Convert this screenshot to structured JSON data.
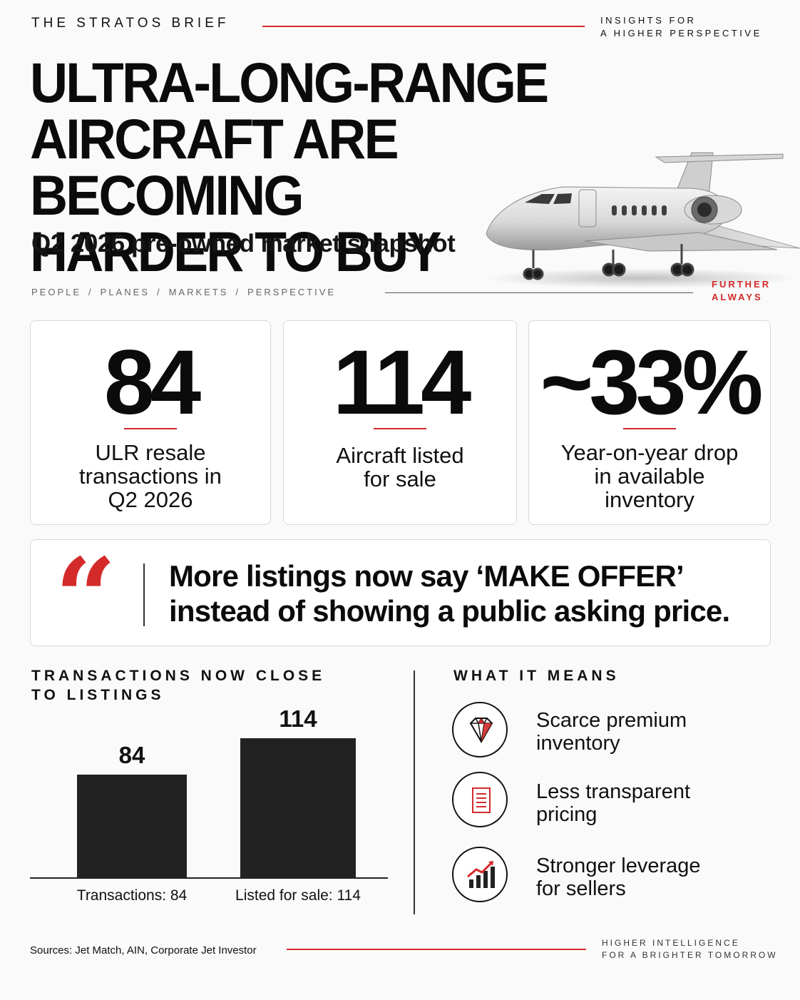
{
  "header": {
    "brand": "THE STRATOS BRIEF",
    "tagline_line1": "INSIGHTS FOR",
    "tagline_line2": "A HIGHER PERSPECTIVE"
  },
  "headline": {
    "line1": "ULTRA-LONG-RANGE",
    "line2": "AIRCRAFT ARE BECOMING",
    "line3": "HARDER TO BUY",
    "subtitle": "Q2 2026 pre-owned market snapshot"
  },
  "nav": {
    "items": [
      "PEOPLE",
      "PLANES",
      "MARKETS",
      "PERSPECTIVE"
    ],
    "separator": "/",
    "slogan_line1": "FURTHER",
    "slogan_line2": "ALWAYS"
  },
  "stats": [
    {
      "value": "84",
      "label_line1": "ULR resale",
      "label_line2": "transactions in",
      "label_line3": "Q2 2026"
    },
    {
      "value": "114",
      "label_line1": "Aircraft listed",
      "label_line2": "for sale"
    },
    {
      "value": "~33%",
      "label_line1": "Year-on-year drop",
      "label_line2": "in available",
      "label_line3": "inventory"
    }
  ],
  "quote": {
    "mark": "“",
    "line1": "More listings now say ‘MAKE OFFER’",
    "line2": "instead of showing a public asking price."
  },
  "chart_section": {
    "title_line1": "TRANSACTIONS NOW CLOSE",
    "title_line2": "TO LISTINGS"
  },
  "chart_data": {
    "type": "bar",
    "categories": [
      "Transactions: 84",
      "Listed for sale: 114"
    ],
    "values": [
      84,
      114
    ],
    "value_labels": [
      "84",
      "114"
    ],
    "ylim": [
      0,
      140
    ],
    "color": "#222222"
  },
  "meaning": {
    "title": "WHAT IT MEANS",
    "items": [
      {
        "icon": "diamond-icon",
        "line1": "Scarce premium",
        "line2": "inventory"
      },
      {
        "icon": "document-icon",
        "line1": "Less transparent",
        "line2": "pricing"
      },
      {
        "icon": "growth-chart-icon",
        "line1": "Stronger leverage",
        "line2": "for sellers"
      }
    ]
  },
  "footer": {
    "sources": "Sources: Jet Match, AIN, Corporate Jet Investor",
    "tag_line1": "HIGHER INTELLIGENCE",
    "tag_line2": "FOR A BRIGHTER TOMORROW"
  },
  "colors": {
    "accent": "#d42a2a",
    "ink": "#111111"
  }
}
